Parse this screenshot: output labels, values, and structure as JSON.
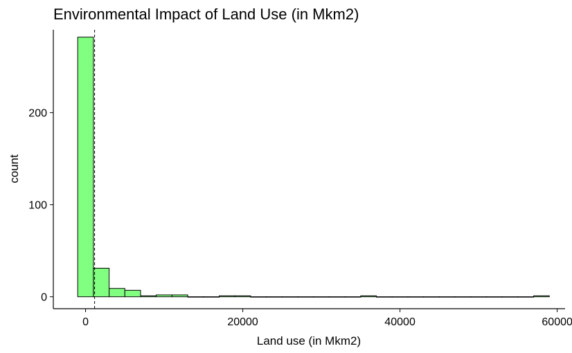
{
  "chart_data": {
    "type": "bar",
    "title": "Environmental Impact of Land Use (in Mkm2)",
    "xlabel": "Land use (in Mkm2)",
    "ylabel": "count",
    "xlim": [
      -4100,
      61000
    ],
    "ylim": [
      -13,
      290
    ],
    "x_ticks": [
      {
        "value": 0,
        "label": "0"
      },
      {
        "value": 20000,
        "label": "20000"
      },
      {
        "value": 40000,
        "label": "40000"
      },
      {
        "value": 60000,
        "label": "60000"
      }
    ],
    "y_ticks": [
      {
        "value": 0,
        "label": "0"
      },
      {
        "value": 100,
        "label": "100"
      },
      {
        "value": 200,
        "label": "200"
      }
    ],
    "bin_width": 2000,
    "bins": [
      {
        "x0": -1000,
        "x1": 1000,
        "count": 282
      },
      {
        "x0": 1000,
        "x1": 3000,
        "count": 31
      },
      {
        "x0": 3000,
        "x1": 5000,
        "count": 9
      },
      {
        "x0": 5000,
        "x1": 7000,
        "count": 7
      },
      {
        "x0": 7000,
        "x1": 9000,
        "count": 1
      },
      {
        "x0": 9000,
        "x1": 11000,
        "count": 2
      },
      {
        "x0": 11000,
        "x1": 13000,
        "count": 2
      },
      {
        "x0": 13000,
        "x1": 15000,
        "count": 0
      },
      {
        "x0": 15000,
        "x1": 17000,
        "count": 0
      },
      {
        "x0": 17000,
        "x1": 19000,
        "count": 1
      },
      {
        "x0": 19000,
        "x1": 21000,
        "count": 1
      },
      {
        "x0": 21000,
        "x1": 23000,
        "count": 0
      },
      {
        "x0": 23000,
        "x1": 25000,
        "count": 0
      },
      {
        "x0": 25000,
        "x1": 27000,
        "count": 0
      },
      {
        "x0": 27000,
        "x1": 29000,
        "count": 0
      },
      {
        "x0": 29000,
        "x1": 31000,
        "count": 0
      },
      {
        "x0": 31000,
        "x1": 33000,
        "count": 0
      },
      {
        "x0": 33000,
        "x1": 35000,
        "count": 0
      },
      {
        "x0": 35000,
        "x1": 37000,
        "count": 1
      },
      {
        "x0": 37000,
        "x1": 39000,
        "count": 0
      },
      {
        "x0": 39000,
        "x1": 41000,
        "count": 0
      },
      {
        "x0": 41000,
        "x1": 43000,
        "count": 0
      },
      {
        "x0": 43000,
        "x1": 45000,
        "count": 0
      },
      {
        "x0": 45000,
        "x1": 47000,
        "count": 0
      },
      {
        "x0": 47000,
        "x1": 49000,
        "count": 0
      },
      {
        "x0": 49000,
        "x1": 51000,
        "count": 0
      },
      {
        "x0": 51000,
        "x1": 53000,
        "count": 0
      },
      {
        "x0": 53000,
        "x1": 55000,
        "count": 0
      },
      {
        "x0": 55000,
        "x1": 57000,
        "count": 0
      },
      {
        "x0": 57000,
        "x1": 59000,
        "count": 1
      }
    ],
    "mean_line": {
      "x": 1150,
      "style": "dashed"
    },
    "colors": {
      "bar_fill": "#80ff80",
      "bar_stroke": "#000000",
      "axis": "#000000",
      "mean_line": "#000000"
    },
    "grid": false,
    "legend": "none"
  }
}
